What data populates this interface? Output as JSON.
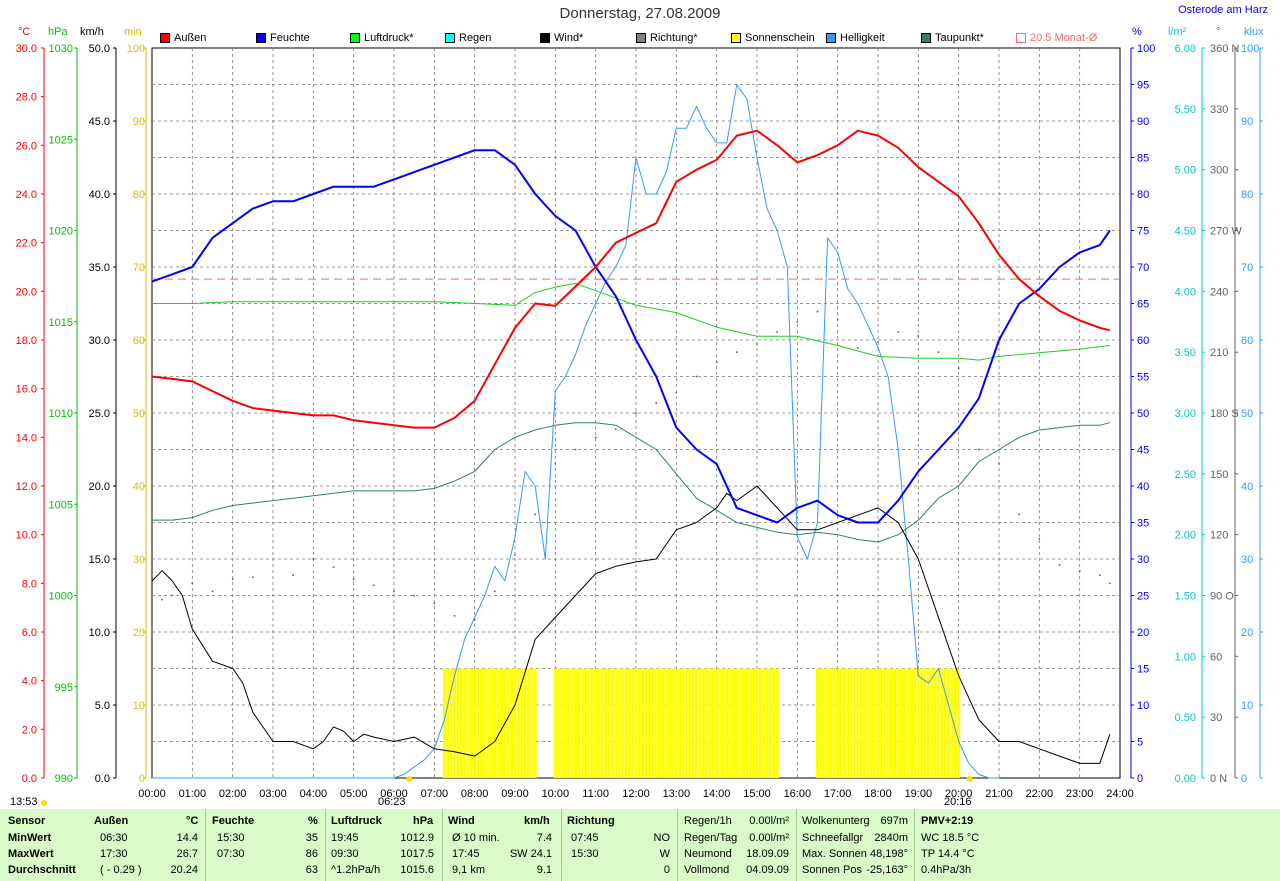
{
  "title": "Donnerstag, 27.08.2009",
  "location": "Osterode am Harz",
  "units": {
    "temp": "°C",
    "hpa": "hPa",
    "kmh": "km/h",
    "min": "min",
    "pct": "%",
    "vm2": "l/m²",
    "deg": "°",
    "klux": "klux"
  },
  "legend": [
    {
      "label": "Außen",
      "color": "#ff0000"
    },
    {
      "label": "Feuchte",
      "color": "#0000ff"
    },
    {
      "label": "Luftdruck*",
      "color": "#00ff00"
    },
    {
      "label": "Regen",
      "color": "#00ffff"
    },
    {
      "label": "Wind*",
      "color": "#000000"
    },
    {
      "label": "Richtung*",
      "color": "#808080"
    },
    {
      "label": "Sonnenschein",
      "color": "#ffff00"
    },
    {
      "label": "Helligkeit",
      "color": "#3399ff"
    },
    {
      "label": "Taupunkt*",
      "color": "#2f7f70"
    },
    {
      "label": "20.5 Monat-Ø",
      "color": "#ff6666"
    }
  ],
  "colors": {
    "temp": "#ff0000",
    "hum": "#0000ff",
    "press": "#00c000",
    "rain": "#00c8c8",
    "wind": "#000000",
    "dir": "#606060",
    "sun": "#ffff00",
    "light": "#3399ff",
    "dew": "#2f7f70",
    "avg": "#ff6666",
    "min_axis": "#d4c200"
  },
  "time_marks": {
    "start": "13:53",
    "sunrise": "06:23",
    "sunset": "20:16"
  },
  "chart_data": {
    "type": "line",
    "x_labels": [
      "00:00",
      "01:00",
      "02:00",
      "03:00",
      "04:00",
      "05:00",
      "06:00",
      "07:00",
      "08:00",
      "09:00",
      "10:00",
      "11:00",
      "12:00",
      "13:00",
      "14:00",
      "15:00",
      "16:00",
      "17:00",
      "18:00",
      "19:00",
      "20:00",
      "21:00",
      "22:00",
      "23:00",
      "24:00"
    ],
    "axes": {
      "temp": {
        "min": 0,
        "max": 30,
        "ticks": [
          "0.0",
          "2.0",
          "4.0",
          "6.0",
          "8.0",
          "10.0",
          "12.0",
          "14.0",
          "16.0",
          "18.0",
          "20.0",
          "22.0",
          "24.0",
          "26.0",
          "28.0",
          "30.0"
        ]
      },
      "pressure": {
        "min": 990,
        "max": 1030,
        "ticks": [
          "990",
          "995",
          "1000",
          "1005",
          "1010",
          "1015",
          "1020",
          "1025",
          "1030"
        ]
      },
      "wind": {
        "min": 0,
        "max": 50,
        "ticks": [
          "0.0",
          "5.0",
          "10.0",
          "15.0",
          "20.0",
          "25.0",
          "30.0",
          "35.0",
          "40.0",
          "45.0",
          "50.0"
        ]
      },
      "sun_min": {
        "min": 0,
        "max": 100,
        "ticks": [
          "0",
          "10",
          "20",
          "30",
          "40",
          "50",
          "60",
          "70",
          "80",
          "90",
          "100"
        ]
      },
      "humidity": {
        "min": 0,
        "max": 100,
        "ticks": [
          "0",
          "5",
          "10",
          "15",
          "20",
          "25",
          "30",
          "35",
          "40",
          "45",
          "50",
          "55",
          "60",
          "65",
          "70",
          "75",
          "80",
          "85",
          "90",
          "95",
          "100"
        ]
      },
      "rain": {
        "min": 0,
        "max": 6,
        "ticks": [
          "0.00",
          "0.50",
          "1.00",
          "1.50",
          "2.00",
          "2.50",
          "3.00",
          "3.50",
          "4.00",
          "4.50",
          "5.00",
          "5.50",
          "6.00"
        ]
      },
      "direction": {
        "min": 0,
        "max": 360,
        "ticks": [
          "0 N",
          "30",
          "60",
          "90 O",
          "120",
          "150",
          "180 S",
          "210",
          "240",
          "270 W",
          "300",
          "330",
          "360 N"
        ]
      },
      "klux": {
        "min": 0,
        "max": 100,
        "ticks": [
          "0",
          "10",
          "20",
          "30",
          "40",
          "50",
          "60",
          "70",
          "80",
          "90",
          "100"
        ]
      }
    },
    "series": [
      {
        "name": "Außen",
        "axis": "temp",
        "x": [
          0,
          0.5,
          1,
          1.5,
          2,
          2.5,
          3,
          3.5,
          4,
          4.5,
          5,
          5.5,
          6,
          6.5,
          7,
          7.5,
          8,
          8.5,
          9,
          9.5,
          10,
          10.5,
          11,
          11.5,
          12,
          12.5,
          13,
          13.5,
          14,
          14.5,
          15,
          15.5,
          16,
          16.5,
          17,
          17.5,
          18,
          18.5,
          19,
          19.5,
          20,
          20.5,
          21,
          21.5,
          22,
          22.5,
          23,
          23.5,
          23.75
        ],
        "y": [
          16.5,
          16.4,
          16.3,
          15.9,
          15.5,
          15.2,
          15.1,
          15.0,
          14.9,
          14.9,
          14.7,
          14.6,
          14.5,
          14.4,
          14.4,
          14.8,
          15.5,
          17.0,
          18.5,
          19.5,
          19.4,
          20.2,
          21.0,
          22.0,
          22.4,
          22.8,
          24.5,
          25.0,
          25.4,
          26.4,
          26.6,
          26.0,
          25.3,
          25.6,
          26.0,
          26.6,
          26.4,
          25.9,
          25.1,
          24.5,
          23.9,
          22.8,
          21.5,
          20.5,
          19.8,
          19.2,
          18.8,
          18.5,
          18.4
        ]
      },
      {
        "name": "Feuchte",
        "axis": "humidity",
        "x": [
          0,
          0.5,
          1,
          1.5,
          2,
          2.5,
          3,
          3.5,
          4,
          4.5,
          5,
          5.5,
          6,
          6.5,
          7,
          7.5,
          8,
          8.5,
          9,
          9.5,
          10,
          10.5,
          11,
          11.5,
          12,
          12.5,
          13,
          13.5,
          14,
          14.5,
          15,
          15.5,
          16,
          16.5,
          17,
          17.5,
          18,
          18.5,
          19,
          19.5,
          20,
          20.5,
          21,
          21.5,
          22,
          22.5,
          23,
          23.5,
          23.75
        ],
        "y": [
          68,
          69,
          70,
          74,
          76,
          78,
          79,
          79,
          80,
          81,
          81,
          81,
          82,
          83,
          84,
          85,
          86,
          86,
          84,
          80,
          77,
          75,
          70,
          66,
          60,
          55,
          48,
          45,
          43,
          37,
          36,
          35,
          37,
          38,
          36,
          35,
          35,
          38,
          42,
          45,
          48,
          52,
          60,
          65,
          67,
          70,
          72,
          73,
          75
        ]
      },
      {
        "name": "Luftdruck*",
        "axis": "pressure",
        "x": [
          0,
          1,
          2,
          3,
          4,
          5,
          6,
          7,
          8,
          9,
          9.5,
          10,
          10.5,
          11,
          12,
          13,
          14,
          15,
          16,
          17,
          18,
          19,
          20,
          20.5,
          21,
          22,
          23,
          23.75
        ],
        "y": [
          1016.0,
          1016.0,
          1016.1,
          1016.1,
          1016.1,
          1016.1,
          1016.1,
          1016.1,
          1016.0,
          1015.9,
          1016.6,
          1016.9,
          1017.1,
          1016.7,
          1015.9,
          1015.5,
          1014.7,
          1014.2,
          1014.2,
          1013.7,
          1013.1,
          1013.0,
          1013.0,
          1012.9,
          1013.1,
          1013.3,
          1013.5,
          1013.7
        ]
      },
      {
        "name": "Taupunkt*",
        "axis": "temp",
        "x": [
          0,
          0.5,
          1,
          1.5,
          2,
          2.5,
          3,
          3.5,
          4,
          4.5,
          5,
          5.5,
          6,
          6.5,
          7,
          7.5,
          8,
          8.5,
          9,
          9.5,
          10,
          10.5,
          11,
          11.5,
          12,
          12.5,
          13,
          13.5,
          14,
          14.5,
          15,
          15.5,
          16,
          16.5,
          17,
          17.5,
          18,
          18.5,
          19,
          19.5,
          20,
          20.5,
          21,
          21.5,
          22,
          22.5,
          23,
          23.5,
          23.75
        ],
        "y": [
          10.6,
          10.6,
          10.7,
          11.0,
          11.2,
          11.3,
          11.4,
          11.5,
          11.6,
          11.7,
          11.8,
          11.8,
          11.8,
          11.8,
          11.9,
          12.2,
          12.6,
          13.5,
          14.0,
          14.3,
          14.5,
          14.6,
          14.6,
          14.5,
          14.0,
          13.5,
          12.5,
          11.5,
          11.0,
          10.5,
          10.3,
          10.1,
          10.0,
          10.1,
          10.0,
          9.8,
          9.7,
          10.0,
          10.6,
          11.5,
          12.0,
          13.0,
          13.5,
          14.0,
          14.3,
          14.4,
          14.5,
          14.5,
          14.6
        ]
      },
      {
        "name": "Wind*",
        "axis": "wind",
        "x": [
          0,
          0.25,
          0.5,
          0.75,
          1,
          1.5,
          2,
          2.25,
          2.5,
          3,
          3.5,
          4,
          4.25,
          4.5,
          4.75,
          5,
          5.25,
          5.5,
          6,
          6.5,
          7,
          7.5,
          8,
          8.5,
          9,
          9.5,
          10,
          10.5,
          11,
          11.5,
          12,
          12.5,
          13,
          13.5,
          14,
          14.25,
          14.5,
          15,
          15.5,
          16,
          16.5,
          17,
          17.5,
          18,
          18.5,
          19,
          19.5,
          20,
          20.5,
          21,
          21.5,
          22,
          22.5,
          23,
          23.5,
          23.75
        ],
        "y": [
          13.5,
          14.2,
          13.5,
          12.5,
          10.2,
          8.0,
          7.5,
          6.5,
          4.5,
          2.5,
          2.5,
          2.0,
          2.5,
          3.5,
          3.2,
          2.5,
          3.0,
          2.8,
          2.5,
          2.8,
          2.0,
          1.8,
          1.5,
          2.5,
          5.0,
          9.5,
          11.0,
          12.5,
          14.0,
          14.5,
          14.8,
          15.0,
          17.0,
          17.5,
          18.5,
          19.5,
          19.0,
          20.0,
          18.5,
          17.0,
          17.0,
          17.5,
          18.0,
          18.5,
          17.5,
          15.0,
          11.0,
          7.0,
          4.0,
          2.5,
          2.5,
          2.0,
          1.5,
          1.0,
          1.0,
          3.0
        ]
      },
      {
        "name": "Helligkeit",
        "axis": "klux",
        "x": [
          0,
          6,
          6.25,
          6.5,
          6.75,
          7,
          7.25,
          7.5,
          7.75,
          8,
          8.25,
          8.5,
          8.75,
          9,
          9.25,
          9.5,
          9.75,
          10,
          10.25,
          10.5,
          10.75,
          11,
          11.25,
          11.5,
          11.75,
          12,
          12.25,
          12.5,
          12.75,
          13,
          13.25,
          13.5,
          13.75,
          14,
          14.25,
          14.5,
          14.75,
          15,
          15.25,
          15.5,
          15.75,
          16,
          16.25,
          16.5,
          16.75,
          17,
          17.25,
          17.5,
          17.75,
          18,
          18.25,
          18.5,
          18.75,
          19,
          19.25,
          19.5,
          19.75,
          20,
          20.25,
          20.5,
          20.75,
          21
        ],
        "y": [
          0,
          0,
          0.5,
          1.5,
          2.5,
          4,
          8,
          14,
          19,
          22,
          25,
          29,
          27,
          33,
          42,
          40,
          30,
          53,
          55,
          58,
          62,
          65,
          68,
          70,
          73,
          85,
          80,
          80,
          83,
          89,
          89,
          92,
          89,
          87,
          87,
          95,
          93,
          85,
          78,
          75,
          70,
          33,
          30,
          35,
          74,
          72,
          67,
          65,
          62,
          59,
          55,
          45,
          30,
          14,
          13,
          15,
          10,
          5,
          2,
          0.5,
          0,
          0
        ]
      },
      {
        "name": "Richtung*",
        "axis": "direction",
        "points": [
          [
            0.25,
            88
          ],
          [
            0.5,
            90
          ],
          [
            1,
            96
          ],
          [
            1.5,
            92
          ],
          [
            2,
            98
          ],
          [
            2.5,
            99
          ],
          [
            3.5,
            100
          ],
          [
            4,
            108
          ],
          [
            4.5,
            104
          ],
          [
            5,
            98
          ],
          [
            5.5,
            95
          ],
          [
            6,
            92
          ],
          [
            6.5,
            90
          ],
          [
            7,
            86
          ],
          [
            7.5,
            80
          ],
          [
            8,
            78
          ],
          [
            8.5,
            92
          ],
          [
            9,
            110
          ],
          [
            9.5,
            130
          ],
          [
            10,
            155
          ],
          [
            10.5,
            162
          ],
          [
            11,
            168
          ],
          [
            11.5,
            172
          ],
          [
            12,
            180
          ],
          [
            12.5,
            185
          ],
          [
            13,
            190
          ],
          [
            13.5,
            198
          ],
          [
            14,
            205
          ],
          [
            14.5,
            210
          ],
          [
            15,
            214
          ],
          [
            15.5,
            220
          ],
          [
            16,
            225
          ],
          [
            16.5,
            230
          ],
          [
            17,
            226
          ],
          [
            17.5,
            212
          ],
          [
            18,
            215
          ],
          [
            18.5,
            220
          ],
          [
            19,
            218
          ],
          [
            19.5,
            210
          ],
          [
            20,
            202
          ],
          [
            20.5,
            162
          ],
          [
            21,
            155
          ],
          [
            21.5,
            130
          ],
          [
            22,
            118
          ],
          [
            22.5,
            105
          ],
          [
            23,
            102
          ],
          [
            23.5,
            100
          ],
          [
            23.75,
            96
          ]
        ]
      },
      {
        "name": "Sonnenschein",
        "axis": "sun_min",
        "type": "bars",
        "on": [
          [
            7.25,
            9.5
          ],
          [
            10,
            15.5
          ],
          [
            16.5,
            20.0
          ]
        ],
        "value": 15
      }
    ],
    "reference_line": {
      "label": "20.5 Monat-Ø",
      "axis": "temp",
      "value": 20.5
    }
  },
  "stats": {
    "headers": {
      "sensor": "Sensor",
      "aussen": "Außen",
      "aussen_unit": "°C",
      "feuchte": "Feuchte",
      "feuchte_unit": "%",
      "luftdruck": "Luftdruck",
      "luftdruck_unit": "hPa",
      "wind": "Wind",
      "wind_unit": "km/h",
      "richtung": "Richtung"
    },
    "rows": [
      {
        "label": "MinWert",
        "aussen_time": "06:30",
        "aussen_val": "14.4",
        "feuchte_time": "15:30",
        "feuchte_val": "35",
        "druck_time": "19:45",
        "druck_val": "1012.9",
        "wind_time": "Ø 10 min.",
        "wind_val": "7.4",
        "dir_time": "07:45",
        "dir_val": "NO"
      },
      {
        "label": "MaxWert",
        "aussen_time": "17:30",
        "aussen_val": "26.7",
        "feuchte_time": "07:30",
        "feuchte_val": "86",
        "druck_time": "09:30",
        "druck_val": "1017.5",
        "wind_time": "17:45",
        "wind_val": "SW 24.1",
        "dir_time": "15:30",
        "dir_val": "W"
      },
      {
        "label": "Durchschnitt",
        "aussen_time": "( - 0.29 )",
        "aussen_val": "20.24",
        "feuchte_time": "",
        "feuchte_val": "63",
        "druck_time": "^1.2hPa/h",
        "druck_val": "1015.6",
        "wind_time": "9,1 km",
        "wind_val": "9.1",
        "dir_time": "",
        "dir_val": "0"
      }
    ],
    "rain": [
      {
        "label": "Regen/1h",
        "value": "0.00l/m²"
      },
      {
        "label": "Regen/Tag",
        "value": "0.00l/m²"
      },
      {
        "label": "Neumond",
        "value": "18.09.09"
      },
      {
        "label": "Vollmond",
        "value": "04.09.09"
      }
    ],
    "cloud": [
      {
        "label": "Wolkenunterg",
        "value": "697m"
      },
      {
        "label": "Schneefallgr",
        "value": "2840m"
      },
      {
        "label": "Max. Sonnen",
        "value": "48,198°"
      },
      {
        "label": "Sonnen Pos",
        "value": "-25,163°"
      }
    ],
    "pmv": {
      "title": "PMV+2:19",
      "lines": [
        "WC 18.5 °C",
        "TP 14.4 °C",
        "0.4hPa/3h"
      ]
    }
  }
}
